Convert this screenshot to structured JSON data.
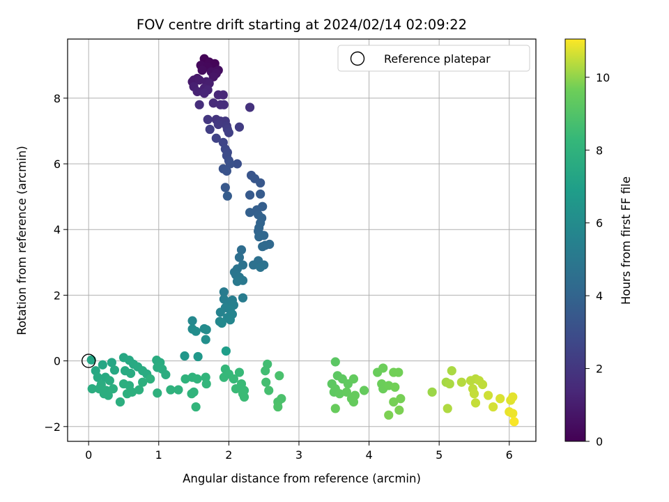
{
  "chart_data": {
    "type": "scatter",
    "title": "FOV centre drift starting at 2024/02/14 02:09:22",
    "xlabel": "Angular distance from reference (arcmin)",
    "ylabel": "Rotation from reference (arcmin)",
    "xlim": [
      -0.3,
      6.38
    ],
    "ylim": [
      -2.45,
      9.8
    ],
    "xticks": [
      0,
      1,
      2,
      3,
      4,
      5,
      6
    ],
    "yticks": [
      -2,
      0,
      2,
      4,
      6,
      8
    ],
    "grid": true,
    "legend": {
      "position": "top-right",
      "label": "Reference platepar",
      "marker": "open-circle"
    },
    "reference_point": {
      "x": 0,
      "y": 0
    },
    "colorbar": {
      "label": "Hours from first FF file",
      "colormap": "viridis",
      "range": [
        0,
        11.05
      ],
      "ticks": [
        0,
        2,
        4,
        6,
        8,
        10
      ]
    },
    "points": [
      {
        "x": 1.65,
        "y": 9.2,
        "c": 0.1
      },
      {
        "x": 1.72,
        "y": 9.1,
        "c": 0.2
      },
      {
        "x": 1.6,
        "y": 9.0,
        "c": 0.3
      },
      {
        "x": 1.8,
        "y": 9.05,
        "c": 0.15
      },
      {
        "x": 1.7,
        "y": 8.95,
        "c": 0.25
      },
      {
        "x": 1.62,
        "y": 8.85,
        "c": 0.4
      },
      {
        "x": 1.75,
        "y": 8.8,
        "c": 0.5
      },
      {
        "x": 1.85,
        "y": 8.85,
        "c": 0.45
      },
      {
        "x": 1.82,
        "y": 8.75,
        "c": 0.6
      },
      {
        "x": 1.78,
        "y": 8.65,
        "c": 0.7
      },
      {
        "x": 1.55,
        "y": 8.6,
        "c": 0.8
      },
      {
        "x": 1.5,
        "y": 8.55,
        "c": 0.85
      },
      {
        "x": 1.48,
        "y": 8.5,
        "c": 0.9
      },
      {
        "x": 1.58,
        "y": 8.55,
        "c": 0.95
      },
      {
        "x": 1.68,
        "y": 8.5,
        "c": 1.0
      },
      {
        "x": 1.72,
        "y": 8.45,
        "c": 1.05
      },
      {
        "x": 1.5,
        "y": 8.35,
        "c": 1.1
      },
      {
        "x": 1.65,
        "y": 8.3,
        "c": 1.15
      },
      {
        "x": 1.55,
        "y": 8.2,
        "c": 1.2
      },
      {
        "x": 1.7,
        "y": 8.25,
        "c": 1.25
      },
      {
        "x": 1.65,
        "y": 8.15,
        "c": 1.3
      },
      {
        "x": 1.85,
        "y": 8.1,
        "c": 1.35
      },
      {
        "x": 1.92,
        "y": 8.1,
        "c": 1.4
      },
      {
        "x": 1.78,
        "y": 7.85,
        "c": 1.5
      },
      {
        "x": 1.88,
        "y": 7.8,
        "c": 1.55
      },
      {
        "x": 1.93,
        "y": 7.8,
        "c": 1.6
      },
      {
        "x": 1.58,
        "y": 7.8,
        "c": 1.65
      },
      {
        "x": 2.3,
        "y": 7.72,
        "c": 1.8
      },
      {
        "x": 1.82,
        "y": 7.35,
        "c": 1.9
      },
      {
        "x": 1.88,
        "y": 7.3,
        "c": 1.95
      },
      {
        "x": 1.7,
        "y": 7.35,
        "c": 2.0
      },
      {
        "x": 1.95,
        "y": 7.3,
        "c": 2.05
      },
      {
        "x": 1.85,
        "y": 7.2,
        "c": 2.1
      },
      {
        "x": 1.97,
        "y": 7.15,
        "c": 2.15
      },
      {
        "x": 2.15,
        "y": 7.12,
        "c": 2.2
      },
      {
        "x": 1.98,
        "y": 7.05,
        "c": 2.25
      },
      {
        "x": 1.73,
        "y": 7.05,
        "c": 2.3
      },
      {
        "x": 2.0,
        "y": 6.95,
        "c": 2.4
      },
      {
        "x": 1.82,
        "y": 6.78,
        "c": 2.5
      },
      {
        "x": 1.92,
        "y": 6.65,
        "c": 2.6
      },
      {
        "x": 1.95,
        "y": 6.45,
        "c": 2.7
      },
      {
        "x": 1.98,
        "y": 6.35,
        "c": 2.8
      },
      {
        "x": 1.97,
        "y": 6.25,
        "c": 2.9
      },
      {
        "x": 2.0,
        "y": 6.1,
        "c": 3.0
      },
      {
        "x": 2.12,
        "y": 6.0,
        "c": 3.05
      },
      {
        "x": 2.02,
        "y": 6.0,
        "c": 3.1
      },
      {
        "x": 1.92,
        "y": 5.85,
        "c": 3.15
      },
      {
        "x": 1.97,
        "y": 5.78,
        "c": 3.2
      },
      {
        "x": 2.32,
        "y": 5.65,
        "c": 3.3
      },
      {
        "x": 2.37,
        "y": 5.55,
        "c": 3.35
      },
      {
        "x": 2.45,
        "y": 5.42,
        "c": 3.4
      },
      {
        "x": 1.95,
        "y": 5.28,
        "c": 3.45
      },
      {
        "x": 2.3,
        "y": 5.05,
        "c": 3.5
      },
      {
        "x": 2.45,
        "y": 5.08,
        "c": 3.55
      },
      {
        "x": 1.98,
        "y": 5.02,
        "c": 3.6
      },
      {
        "x": 2.48,
        "y": 4.7,
        "c": 3.7
      },
      {
        "x": 2.4,
        "y": 4.6,
        "c": 3.75
      },
      {
        "x": 2.3,
        "y": 4.52,
        "c": 3.8
      },
      {
        "x": 2.42,
        "y": 4.45,
        "c": 3.85
      },
      {
        "x": 2.47,
        "y": 4.35,
        "c": 3.9
      },
      {
        "x": 2.45,
        "y": 4.2,
        "c": 3.95
      },
      {
        "x": 2.43,
        "y": 4.05,
        "c": 4.0
      },
      {
        "x": 2.42,
        "y": 3.95,
        "c": 4.05
      },
      {
        "x": 2.5,
        "y": 3.82,
        "c": 4.1
      },
      {
        "x": 2.43,
        "y": 3.78,
        "c": 4.15
      },
      {
        "x": 2.58,
        "y": 3.55,
        "c": 4.2
      },
      {
        "x": 2.52,
        "y": 3.52,
        "c": 4.25
      },
      {
        "x": 2.48,
        "y": 3.48,
        "c": 4.3
      },
      {
        "x": 2.18,
        "y": 3.38,
        "c": 4.4
      },
      {
        "x": 2.15,
        "y": 3.15,
        "c": 4.5
      },
      {
        "x": 2.42,
        "y": 3.05,
        "c": 4.55
      },
      {
        "x": 2.35,
        "y": 2.92,
        "c": 4.6
      },
      {
        "x": 2.2,
        "y": 2.92,
        "c": 4.65
      },
      {
        "x": 2.5,
        "y": 2.92,
        "c": 4.7
      },
      {
        "x": 2.45,
        "y": 2.85,
        "c": 4.75
      },
      {
        "x": 2.12,
        "y": 2.8,
        "c": 4.8
      },
      {
        "x": 2.08,
        "y": 2.7,
        "c": 4.85
      },
      {
        "x": 2.1,
        "y": 2.62,
        "c": 4.9
      },
      {
        "x": 2.15,
        "y": 2.55,
        "c": 4.95
      },
      {
        "x": 2.2,
        "y": 2.45,
        "c": 5.0
      },
      {
        "x": 2.12,
        "y": 2.42,
        "c": 5.05
      },
      {
        "x": 1.93,
        "y": 2.1,
        "c": 5.15
      },
      {
        "x": 2.2,
        "y": 1.92,
        "c": 5.2
      },
      {
        "x": 1.93,
        "y": 1.88,
        "c": 5.25
      },
      {
        "x": 2.05,
        "y": 1.85,
        "c": 5.3
      },
      {
        "x": 2.0,
        "y": 1.75,
        "c": 5.35
      },
      {
        "x": 2.07,
        "y": 1.7,
        "c": 5.4
      },
      {
        "x": 1.95,
        "y": 1.62,
        "c": 5.45
      },
      {
        "x": 2.02,
        "y": 1.55,
        "c": 5.5
      },
      {
        "x": 1.88,
        "y": 1.48,
        "c": 5.55
      },
      {
        "x": 2.05,
        "y": 1.42,
        "c": 5.6
      },
      {
        "x": 1.98,
        "y": 1.32,
        "c": 5.65
      },
      {
        "x": 2.02,
        "y": 1.25,
        "c": 5.7
      },
      {
        "x": 1.87,
        "y": 1.2,
        "c": 5.75
      },
      {
        "x": 1.48,
        "y": 1.22,
        "c": 5.8
      },
      {
        "x": 1.9,
        "y": 1.15,
        "c": 5.85
      },
      {
        "x": 1.65,
        "y": 0.98,
        "c": 5.9
      },
      {
        "x": 1.48,
        "y": 0.97,
        "c": 5.95
      },
      {
        "x": 1.68,
        "y": 0.95,
        "c": 6.0
      },
      {
        "x": 1.53,
        "y": 0.9,
        "c": 6.05
      },
      {
        "x": 1.67,
        "y": 0.65,
        "c": 6.15
      },
      {
        "x": 1.37,
        "y": 0.15,
        "c": 6.5
      },
      {
        "x": 1.56,
        "y": 0.13,
        "c": 6.6
      },
      {
        "x": 1.96,
        "y": 0.3,
        "c": 6.9
      },
      {
        "x": 0.04,
        "y": 0.03,
        "c": 7.3
      },
      {
        "x": 0.2,
        "y": -0.12,
        "c": 7.35
      },
      {
        "x": 0.1,
        "y": -0.3,
        "c": 7.4
      },
      {
        "x": 0.33,
        "y": -0.05,
        "c": 7.35
      },
      {
        "x": 0.5,
        "y": 0.1,
        "c": 7.4
      },
      {
        "x": 0.58,
        "y": 0.02,
        "c": 7.45
      },
      {
        "x": 0.37,
        "y": -0.28,
        "c": 7.45
      },
      {
        "x": 0.13,
        "y": -0.5,
        "c": 7.5
      },
      {
        "x": 0.24,
        "y": -0.5,
        "c": 7.5
      },
      {
        "x": 0.64,
        "y": -0.1,
        "c": 7.5
      },
      {
        "x": 0.7,
        "y": -0.18,
        "c": 7.55
      },
      {
        "x": 0.52,
        "y": -0.3,
        "c": 7.55
      },
      {
        "x": 0.6,
        "y": -0.38,
        "c": 7.6
      },
      {
        "x": 0.77,
        "y": -0.3,
        "c": 7.6
      },
      {
        "x": 0.83,
        "y": -0.4,
        "c": 7.6
      },
      {
        "x": 0.97,
        "y": 0.02,
        "c": 7.65
      },
      {
        "x": 1.02,
        "y": -0.05,
        "c": 7.65
      },
      {
        "x": 0.98,
        "y": -0.2,
        "c": 7.7
      },
      {
        "x": 1.05,
        "y": -0.25,
        "c": 7.7
      },
      {
        "x": 1.1,
        "y": -0.42,
        "c": 7.7
      },
      {
        "x": 0.3,
        "y": -0.6,
        "c": 7.65
      },
      {
        "x": 0.18,
        "y": -0.72,
        "c": 7.7
      },
      {
        "x": 0.05,
        "y": -0.85,
        "c": 7.7
      },
      {
        "x": 0.15,
        "y": -0.85,
        "c": 7.75
      },
      {
        "x": 0.25,
        "y": -0.9,
        "c": 7.75
      },
      {
        "x": 0.22,
        "y": -1.0,
        "c": 7.75
      },
      {
        "x": 0.28,
        "y": -1.05,
        "c": 7.75
      },
      {
        "x": 0.35,
        "y": -0.85,
        "c": 7.8
      },
      {
        "x": 0.45,
        "y": -1.25,
        "c": 7.8
      },
      {
        "x": 0.5,
        "y": -0.7,
        "c": 7.8
      },
      {
        "x": 0.58,
        "y": -0.75,
        "c": 7.8
      },
      {
        "x": 0.55,
        "y": -1.0,
        "c": 7.85
      },
      {
        "x": 0.62,
        "y": -0.95,
        "c": 7.85
      },
      {
        "x": 0.72,
        "y": -0.88,
        "c": 7.85
      },
      {
        "x": 0.77,
        "y": -0.65,
        "c": 7.85
      },
      {
        "x": 0.88,
        "y": -0.55,
        "c": 7.9
      },
      {
        "x": 0.98,
        "y": -0.98,
        "c": 7.9
      },
      {
        "x": 1.17,
        "y": -0.88,
        "c": 7.95
      },
      {
        "x": 1.28,
        "y": -0.88,
        "c": 7.95
      },
      {
        "x": 1.38,
        "y": -0.55,
        "c": 8.0
      },
      {
        "x": 1.48,
        "y": -0.5,
        "c": 8.0
      },
      {
        "x": 1.55,
        "y": -0.55,
        "c": 8.05
      },
      {
        "x": 1.5,
        "y": -0.95,
        "c": 8.05
      },
      {
        "x": 1.47,
        "y": -1.0,
        "c": 8.05
      },
      {
        "x": 1.53,
        "y": -1.4,
        "c": 8.1
      },
      {
        "x": 1.67,
        "y": -0.5,
        "c": 8.1
      },
      {
        "x": 1.68,
        "y": -0.7,
        "c": 8.15
      },
      {
        "x": 1.95,
        "y": -0.25,
        "c": 8.25
      },
      {
        "x": 1.93,
        "y": -0.5,
        "c": 8.3
      },
      {
        "x": 2.0,
        "y": -0.4,
        "c": 8.3
      },
      {
        "x": 2.07,
        "y": -0.55,
        "c": 8.35
      },
      {
        "x": 2.15,
        "y": -0.35,
        "c": 8.35
      },
      {
        "x": 2.18,
        "y": -0.7,
        "c": 8.4
      },
      {
        "x": 2.22,
        "y": -0.9,
        "c": 8.4
      },
      {
        "x": 2.2,
        "y": -1.0,
        "c": 8.45
      },
      {
        "x": 2.22,
        "y": -1.1,
        "c": 8.45
      },
      {
        "x": 2.1,
        "y": -0.85,
        "c": 8.4
      },
      {
        "x": 2.55,
        "y": -0.1,
        "c": 8.6
      },
      {
        "x": 2.52,
        "y": -0.3,
        "c": 8.6
      },
      {
        "x": 2.57,
        "y": -0.9,
        "c": 8.7
      },
      {
        "x": 2.53,
        "y": -0.65,
        "c": 8.65
      },
      {
        "x": 2.72,
        "y": -0.45,
        "c": 8.8
      },
      {
        "x": 2.75,
        "y": -1.15,
        "c": 8.85
      },
      {
        "x": 2.7,
        "y": -1.25,
        "c": 8.85
      },
      {
        "x": 2.7,
        "y": -1.4,
        "c": 8.9
      },
      {
        "x": 3.52,
        "y": -0.03,
        "c": 9.2
      },
      {
        "x": 3.47,
        "y": -0.7,
        "c": 9.25
      },
      {
        "x": 3.55,
        "y": -0.45,
        "c": 9.25
      },
      {
        "x": 3.62,
        "y": -0.55,
        "c": 9.3
      },
      {
        "x": 3.52,
        "y": -0.85,
        "c": 9.3
      },
      {
        "x": 3.5,
        "y": -0.95,
        "c": 9.3
      },
      {
        "x": 3.58,
        "y": -1.0,
        "c": 9.35
      },
      {
        "x": 3.7,
        "y": -0.7,
        "c": 9.35
      },
      {
        "x": 3.78,
        "y": -0.55,
        "c": 9.4
      },
      {
        "x": 3.68,
        "y": -0.95,
        "c": 9.4
      },
      {
        "x": 3.75,
        "y": -1.15,
        "c": 9.4
      },
      {
        "x": 3.8,
        "y": -1.05,
        "c": 9.45
      },
      {
        "x": 3.93,
        "y": -0.9,
        "c": 9.45
      },
      {
        "x": 3.78,
        "y": -1.25,
        "c": 9.45
      },
      {
        "x": 3.52,
        "y": -1.45,
        "c": 9.5
      },
      {
        "x": 4.12,
        "y": -0.35,
        "c": 9.55
      },
      {
        "x": 4.2,
        "y": -0.22,
        "c": 9.6
      },
      {
        "x": 4.18,
        "y": -0.7,
        "c": 9.6
      },
      {
        "x": 4.2,
        "y": -0.85,
        "c": 9.6
      },
      {
        "x": 4.28,
        "y": -0.75,
        "c": 9.65
      },
      {
        "x": 4.35,
        "y": -0.35,
        "c": 9.7
      },
      {
        "x": 4.42,
        "y": -0.35,
        "c": 9.7
      },
      {
        "x": 4.37,
        "y": -0.8,
        "c": 9.7
      },
      {
        "x": 4.45,
        "y": -1.15,
        "c": 9.75
      },
      {
        "x": 4.35,
        "y": -1.25,
        "c": 9.75
      },
      {
        "x": 4.43,
        "y": -1.5,
        "c": 9.8
      },
      {
        "x": 4.28,
        "y": -1.65,
        "c": 9.8
      },
      {
        "x": 4.9,
        "y": -0.95,
        "c": 10.1
      },
      {
        "x": 5.1,
        "y": -0.65,
        "c": 10.2
      },
      {
        "x": 5.18,
        "y": -0.3,
        "c": 10.25
      },
      {
        "x": 5.15,
        "y": -0.7,
        "c": 10.25
      },
      {
        "x": 5.12,
        "y": -1.45,
        "c": 10.3
      },
      {
        "x": 5.32,
        "y": -0.65,
        "c": 10.35
      },
      {
        "x": 5.45,
        "y": -0.6,
        "c": 10.4
      },
      {
        "x": 5.52,
        "y": -0.55,
        "c": 10.4
      },
      {
        "x": 5.57,
        "y": -0.6,
        "c": 10.45
      },
      {
        "x": 5.62,
        "y": -0.72,
        "c": 10.45
      },
      {
        "x": 5.48,
        "y": -0.85,
        "c": 10.45
      },
      {
        "x": 5.5,
        "y": -1.0,
        "c": 10.5
      },
      {
        "x": 5.52,
        "y": -1.28,
        "c": 10.5
      },
      {
        "x": 5.7,
        "y": -1.05,
        "c": 10.6
      },
      {
        "x": 5.77,
        "y": -1.4,
        "c": 10.65
      },
      {
        "x": 5.87,
        "y": -1.15,
        "c": 10.7
      },
      {
        "x": 6.02,
        "y": -1.2,
        "c": 10.75
      },
      {
        "x": 6.05,
        "y": -1.1,
        "c": 10.8
      },
      {
        "x": 6.0,
        "y": -1.55,
        "c": 10.85
      },
      {
        "x": 6.05,
        "y": -1.6,
        "c": 10.9
      },
      {
        "x": 6.07,
        "y": -1.85,
        "c": 11.0
      }
    ]
  }
}
